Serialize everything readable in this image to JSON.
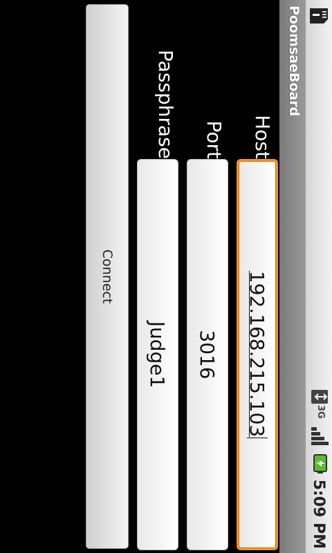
{
  "status_bar": {
    "time": "5:09 PM",
    "network_type": "3G",
    "icons": [
      "sd-card-icon",
      "data-transfer-icon",
      "signal-strength-icon",
      "battery-charging-icon"
    ]
  },
  "app": {
    "title": "PoomsaeBoard"
  },
  "form": {
    "host": {
      "label": "Host",
      "value": "192.168.215.103",
      "focused": true
    },
    "port": {
      "label": "Port",
      "value": "3016"
    },
    "passphrase": {
      "label": "Passphrase",
      "value": "Judge1"
    },
    "connect_label": "Connect"
  },
  "colors": {
    "focus": "#f7941d",
    "background": "#000000",
    "battery": "#5dbb2e"
  }
}
